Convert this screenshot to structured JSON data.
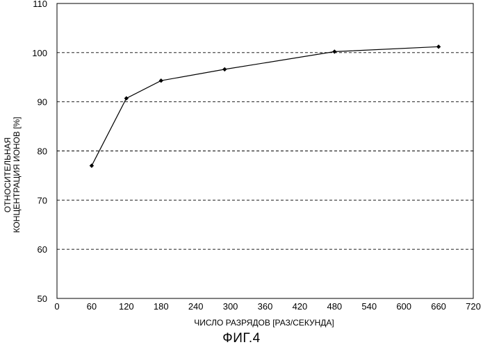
{
  "chart_data": {
    "type": "line",
    "ylabel_line1": "ОТНОСИТЕЛЬНАЯ",
    "ylabel_line2": "КОНЦЕНТРАЦИЯ ИОНОВ [%]",
    "xlabel": "ЧИСЛО РАЗРЯДОВ [РАЗ/СЕКУНДА]",
    "figure_caption": "ФИГ.4",
    "xlim": [
      0,
      720
    ],
    "ylim": [
      50,
      110
    ],
    "x_ticks": [
      "0",
      "60",
      "120",
      "180",
      "240",
      "300",
      "360",
      "420",
      "480",
      "540",
      "600",
      "660",
      "720"
    ],
    "y_ticks": [
      "50",
      "60",
      "70",
      "80",
      "90",
      "100",
      "110"
    ],
    "dashed_gridlines_y": [
      60,
      70,
      80,
      90,
      100
    ],
    "series": [
      {
        "x": [
          60,
          120,
          180,
          290,
          480,
          660
        ],
        "y": [
          77,
          90.7,
          94.3,
          96.6,
          100.2,
          101.2
        ]
      }
    ]
  }
}
